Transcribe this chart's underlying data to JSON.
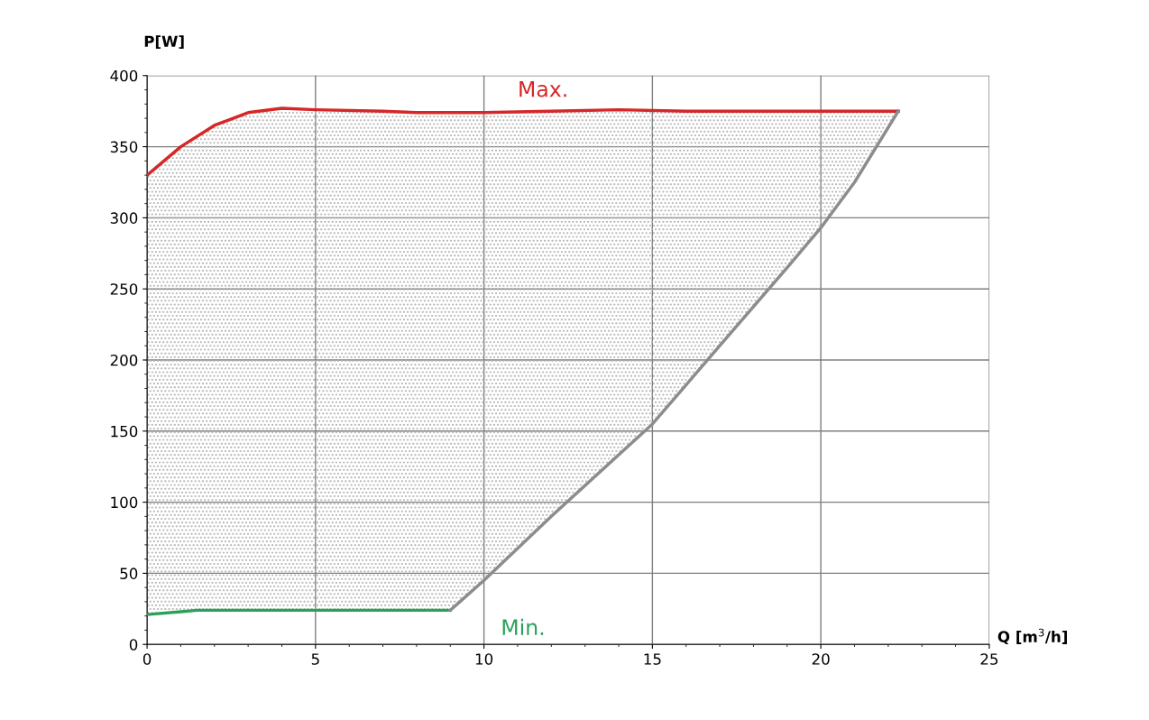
{
  "chart_data": {
    "type": "line",
    "xlabel": "Q [m$^{3}$/h]",
    "ylabel": "P[W]",
    "series": [
      {
        "name": "Max.",
        "color": "#d62728",
        "x": [
          0,
          1,
          2,
          3,
          4,
          5,
          7,
          8,
          9,
          10,
          12,
          14,
          16,
          18,
          20,
          22.3
        ],
        "values": [
          330,
          350,
          365,
          374,
          377,
          376,
          375,
          374,
          374,
          374,
          375,
          376,
          375,
          375,
          375,
          375
        ],
        "upper": [
          330,
          350,
          365,
          374,
          377,
          376,
          375,
          374,
          374,
          374,
          375,
          376,
          375,
          375,
          375,
          375
        ],
        "lower": [
          21,
          23,
          24,
          24,
          24,
          24,
          24,
          24,
          24,
          45,
          90,
          133,
          182,
          237,
          293,
          375
        ]
      },
      {
        "name": "Min.",
        "color": "#2ca05a",
        "x": [
          0,
          1,
          1.5,
          9
        ],
        "values": [
          21,
          23,
          24,
          24
        ]
      },
      {
        "color": "#8c8c8c",
        "x": [
          9,
          10,
          12,
          15,
          17,
          19,
          20,
          21,
          22.3
        ],
        "values": [
          24,
          45,
          90,
          155,
          210,
          265,
          293,
          325,
          375
        ]
      }
    ],
    "xlim": [
      0,
      25
    ],
    "ylim": [
      0,
      400
    ],
    "xticks": [
      0,
      5,
      10,
      15,
      20,
      25
    ],
    "yticks": [
      0,
      50,
      100,
      150,
      200,
      250,
      300,
      350,
      400
    ],
    "grid": true,
    "legend": false
  }
}
